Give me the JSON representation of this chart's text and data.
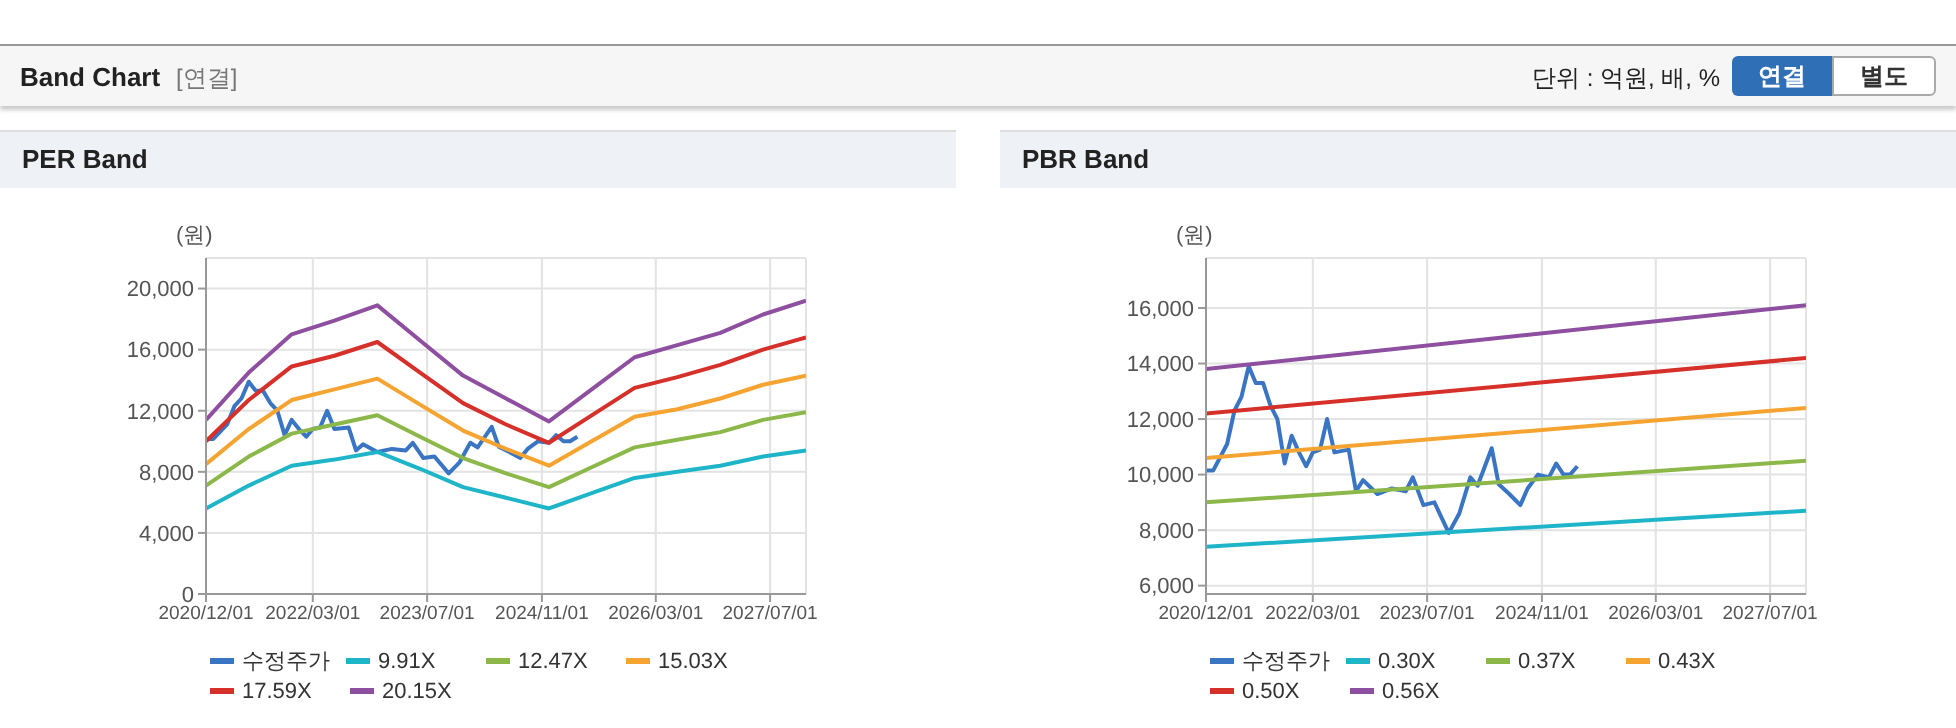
{
  "chart_data": [
    {
      "type": "other",
      "title": "Band Chart",
      "annotations": [
        "[연결]",
        "단위 : 억원, 배, %",
        "연결",
        "별도"
      ]
    },
    {
      "type": "line",
      "title": "PER Band",
      "ylabel": "(원)",
      "grid": true,
      "legend": "bottom",
      "xlim": [
        "2020-12-01",
        "2027-12-01"
      ],
      "xticks": [
        {
          "value": "2020-12-01",
          "label": "2020/12/01"
        },
        {
          "value": "2022-03-01",
          "label": "2022/03/01"
        },
        {
          "value": "2023-07-01",
          "label": "2023/07/01"
        },
        {
          "value": "2024-11-01",
          "label": "2024/11/01"
        },
        {
          "value": "2026-03-01",
          "label": "2026/03/01"
        },
        {
          "value": "2027-07-01",
          "label": "2027/07/01"
        }
      ],
      "ylim": [
        0,
        22000
      ],
      "yticks": [
        0,
        {
          "value": 4000,
          "label": "4,000"
        },
        {
          "value": 8000,
          "label": "8,000"
        },
        {
          "value": 12000,
          "label": "12,000"
        },
        {
          "value": 16000,
          "label": "16,000"
        },
        {
          "value": 20000,
          "label": "20,000"
        }
      ],
      "series": [
        {
          "name": "수정주가",
          "color": "#3a75c4",
          "x": [
            "2020-12-01",
            "2021-01-01",
            "2021-03-01",
            "2021-04-01",
            "2021-05-01",
            "2021-06-01",
            "2021-07-01",
            "2021-08-01",
            "2021-09-01",
            "2021-10-01",
            "2021-11-01",
            "2021-12-01",
            "2022-01-01",
            "2022-02-01",
            "2022-03-01",
            "2022-04-01",
            "2022-05-01",
            "2022-06-01",
            "2022-08-01",
            "2022-09-01",
            "2022-10-01",
            "2022-12-01",
            "2023-02-01",
            "2023-04-01",
            "2023-05-01",
            "2023-06-15",
            "2023-08-01",
            "2023-10-01",
            "2023-11-15",
            "2024-01-01",
            "2024-02-01",
            "2024-04-01",
            "2024-05-01",
            "2024-06-15",
            "2024-08-01",
            "2024-09-01",
            "2024-10-15",
            "2024-12-01",
            "2025-01-01",
            "2025-02-01",
            "2025-03-01",
            "2025-04-01"
          ],
          "values": [
            10150,
            10150,
            11100,
            12300,
            12800,
            13900,
            13300,
            13300,
            12500,
            12000,
            10400,
            11400,
            10800,
            10300,
            10800,
            10900,
            12000,
            10800,
            10900,
            9400,
            9800,
            9300,
            9500,
            9400,
            9900,
            8900,
            9000,
            7900,
            8600,
            9900,
            9600,
            10950,
            9650,
            9300,
            8900,
            9500,
            10000,
            9900,
            10400,
            10000,
            10000,
            10300
          ]
        },
        {
          "name": "9.91X",
          "color": "#1fb5c9",
          "x": [
            "2020-12-01",
            "2021-06-01",
            "2021-12-01",
            "2022-06-01",
            "2022-12-01",
            "2023-06-01",
            "2023-12-01",
            "2024-06-01",
            "2024-12-01",
            "2025-06-01",
            "2025-12-01",
            "2026-06-01",
            "2026-12-01",
            "2027-06-01",
            "2027-12-01"
          ],
          "values": [
            5600,
            7100,
            8400,
            8800,
            9300,
            8200,
            7000,
            6300,
            5600,
            6600,
            7600,
            8000,
            8400,
            9000,
            9400
          ]
        },
        {
          "name": "12.47X",
          "color": "#8cb84a",
          "x": [
            "2020-12-01",
            "2021-06-01",
            "2021-12-01",
            "2022-06-01",
            "2022-12-01",
            "2023-06-01",
            "2023-12-01",
            "2024-06-01",
            "2024-12-01",
            "2025-06-01",
            "2025-12-01",
            "2026-06-01",
            "2026-12-01",
            "2027-06-01",
            "2027-12-01"
          ],
          "values": [
            7100,
            9000,
            10500,
            11100,
            11700,
            10300,
            8900,
            7900,
            7000,
            8300,
            9600,
            10100,
            10600,
            11400,
            11900
          ]
        },
        {
          "name": "15.03X",
          "color": "#f5a431",
          "x": [
            "2020-12-01",
            "2021-06-01",
            "2021-12-01",
            "2022-06-01",
            "2022-12-01",
            "2023-06-01",
            "2023-12-01",
            "2024-06-01",
            "2024-12-01",
            "2025-06-01",
            "2025-12-01",
            "2026-06-01",
            "2026-12-01",
            "2027-06-01",
            "2027-12-01"
          ],
          "values": [
            8500,
            10800,
            12700,
            13400,
            14100,
            12400,
            10700,
            9500,
            8400,
            10000,
            11600,
            12100,
            12800,
            13700,
            14300
          ]
        },
        {
          "name": "17.59X",
          "color": "#d6302a",
          "x": [
            "2020-12-01",
            "2021-06-01",
            "2021-12-01",
            "2022-06-01",
            "2022-12-01",
            "2023-06-01",
            "2023-12-01",
            "2024-06-01",
            "2024-12-01",
            "2025-06-01",
            "2025-12-01",
            "2026-06-01",
            "2026-12-01",
            "2027-06-01",
            "2027-12-01"
          ],
          "values": [
            10000,
            12700,
            14900,
            15600,
            16500,
            14500,
            12500,
            11100,
            9900,
            11700,
            13500,
            14200,
            15000,
            16000,
            16800
          ]
        },
        {
          "name": "20.15X",
          "color": "#8e4fa0",
          "x": [
            "2020-12-01",
            "2021-06-01",
            "2021-12-01",
            "2022-06-01",
            "2022-12-01",
            "2023-06-01",
            "2023-12-01",
            "2024-06-01",
            "2024-12-01",
            "2025-06-01",
            "2025-12-01",
            "2026-06-01",
            "2026-12-01",
            "2027-06-01",
            "2027-12-01"
          ],
          "values": [
            11400,
            14500,
            17000,
            17900,
            18900,
            16600,
            14300,
            12800,
            11300,
            13400,
            15500,
            16300,
            17100,
            18300,
            19200
          ]
        }
      ]
    },
    {
      "type": "line",
      "title": "PBR Band",
      "ylabel": "(원)",
      "grid": true,
      "legend": "bottom",
      "xlim": [
        "2020-12-01",
        "2027-12-01"
      ],
      "xticks": [
        {
          "value": "2020-12-01",
          "label": "2020/12/01"
        },
        {
          "value": "2022-03-01",
          "label": "2022/03/01"
        },
        {
          "value": "2023-07-01",
          "label": "2023/07/01"
        },
        {
          "value": "2024-11-01",
          "label": "2024/11/01"
        },
        {
          "value": "2026-03-01",
          "label": "2026/03/01"
        },
        {
          "value": "2027-07-01",
          "label": "2027/07/01"
        }
      ],
      "ylim": [
        5700,
        17800
      ],
      "yticks": [
        {
          "value": 6000,
          "label": "6,000"
        },
        {
          "value": 8000,
          "label": "8,000"
        },
        {
          "value": 10000,
          "label": "10,000"
        },
        {
          "value": 12000,
          "label": "12,000"
        },
        {
          "value": 14000,
          "label": "14,000"
        },
        {
          "value": 16000,
          "label": "16,000"
        }
      ],
      "series": [
        {
          "name": "수정주가",
          "color": "#3a75c4",
          "x": [
            "2020-12-01",
            "2021-01-01",
            "2021-03-01",
            "2021-04-01",
            "2021-05-01",
            "2021-06-01",
            "2021-07-01",
            "2021-08-01",
            "2021-09-01",
            "2021-10-01",
            "2021-11-01",
            "2021-12-01",
            "2022-01-01",
            "2022-02-01",
            "2022-03-01",
            "2022-04-01",
            "2022-05-01",
            "2022-06-01",
            "2022-08-01",
            "2022-09-01",
            "2022-10-01",
            "2022-12-01",
            "2023-02-01",
            "2023-04-01",
            "2023-05-01",
            "2023-06-15",
            "2023-08-01",
            "2023-10-01",
            "2023-11-15",
            "2024-01-01",
            "2024-02-01",
            "2024-04-01",
            "2024-05-01",
            "2024-06-15",
            "2024-08-01",
            "2024-09-01",
            "2024-10-15",
            "2024-12-01",
            "2025-01-01",
            "2025-02-01",
            "2025-03-01",
            "2025-04-01"
          ],
          "values": [
            10150,
            10150,
            11100,
            12300,
            12800,
            13900,
            13300,
            13300,
            12500,
            12000,
            10400,
            11400,
            10800,
            10300,
            10800,
            10900,
            12000,
            10800,
            10900,
            9400,
            9800,
            9300,
            9500,
            9400,
            9900,
            8900,
            9000,
            7900,
            8600,
            9900,
            9600,
            10950,
            9650,
            9300,
            8900,
            9500,
            10000,
            9900,
            10400,
            10000,
            10000,
            10300
          ]
        },
        {
          "name": "0.30X",
          "color": "#1fb5c9",
          "x": [
            "2020-12-01",
            "2027-12-01"
          ],
          "values": [
            7400,
            8700
          ]
        },
        {
          "name": "0.37X",
          "color": "#8cb84a",
          "x": [
            "2020-12-01",
            "2027-12-01"
          ],
          "values": [
            9000,
            10500
          ]
        },
        {
          "name": "0.43X",
          "color": "#f5a431",
          "x": [
            "2020-12-01",
            "2027-12-01"
          ],
          "values": [
            10600,
            12400
          ]
        },
        {
          "name": "0.50X",
          "color": "#d6302a",
          "x": [
            "2020-12-01",
            "2027-12-01"
          ],
          "values": [
            12200,
            14200
          ]
        },
        {
          "name": "0.56X",
          "color": "#8e4fa0",
          "x": [
            "2020-12-01",
            "2027-12-01"
          ],
          "values": [
            13800,
            16100
          ]
        }
      ]
    }
  ]
}
